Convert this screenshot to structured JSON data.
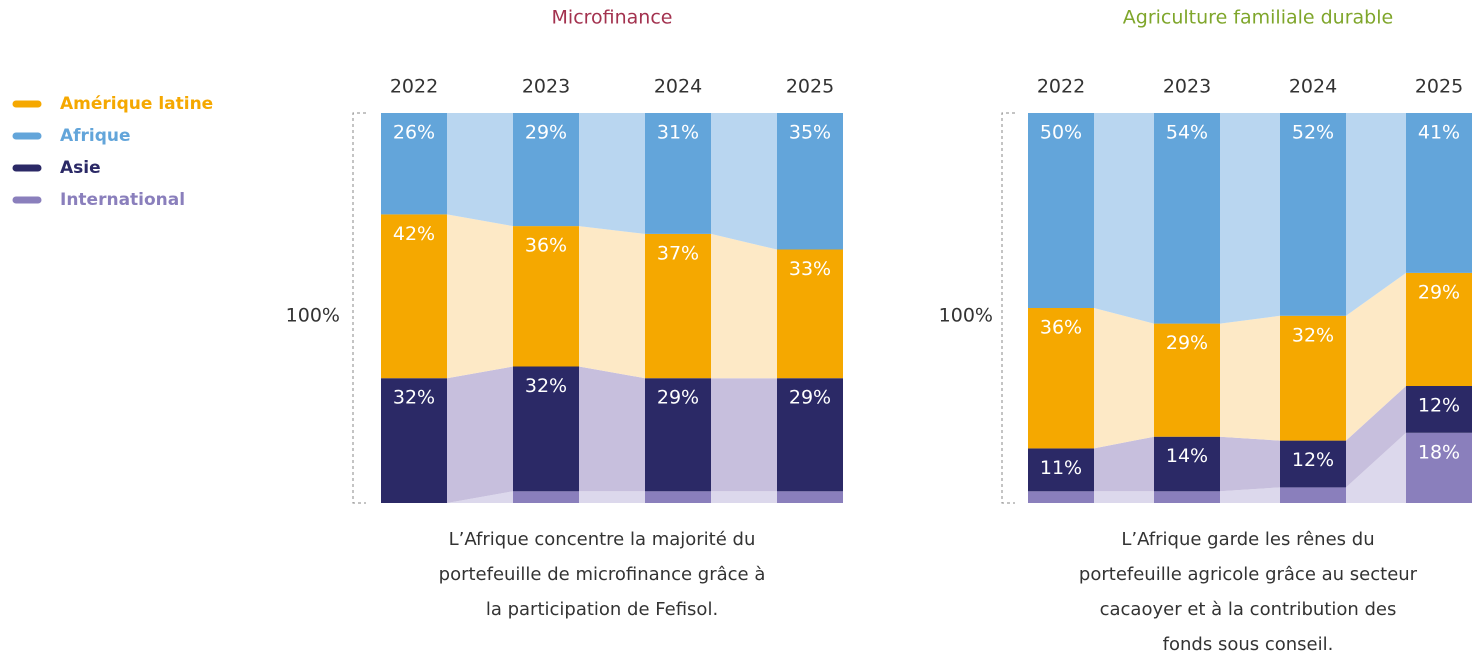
{
  "chart_data": [
    {
      "type": "bar",
      "title": "Microfinance",
      "y_label": "100%",
      "categories": [
        "2022",
        "2023",
        "2024",
        "2025"
      ],
      "series": [
        {
          "name": "Amérique latine",
          "color": "#f5a800",
          "band_color": "#fde9c6",
          "values": [
            42,
            36,
            37,
            33
          ],
          "value_labels": [
            "42%",
            "36%",
            "37%",
            "33%"
          ]
        },
        {
          "name": "Afrique",
          "color": "#63a5da",
          "band_color": "#b9d6f0",
          "values": [
            26,
            29,
            31,
            35
          ],
          "value_labels": [
            "26%",
            "29%",
            "31%",
            "35%"
          ]
        },
        {
          "name": "Asie",
          "color": "#2b2966",
          "band_color": "#c7bfdd",
          "values": [
            32,
            32,
            29,
            29
          ],
          "value_labels": [
            "32%",
            "32%",
            "29%",
            "29%"
          ]
        },
        {
          "name": "International",
          "color": "#8a7fbc",
          "band_color": "#dcd8ec",
          "values": [
            null,
            3,
            3,
            3
          ],
          "value_labels": [
            null,
            "3%",
            "3%",
            "3%"
          ]
        }
      ],
      "caption": [
        "L’Afrique concentre la majorité du",
        "portefeuille de microfinance grâce à",
        "la participation de Fefisol."
      ]
    },
    {
      "type": "bar",
      "title": "Agriculture familiale durable",
      "y_label": "100%",
      "categories": [
        "2022",
        "2023",
        "2024",
        "2025"
      ],
      "series": [
        {
          "name": "Amérique latine",
          "color": "#f5a800",
          "band_color": "#fde9c6",
          "values": [
            36,
            29,
            32,
            29
          ],
          "value_labels": [
            "36%",
            "29%",
            "32%",
            "29%"
          ]
        },
        {
          "name": "Afrique",
          "color": "#63a5da",
          "band_color": "#b9d6f0",
          "values": [
            50,
            54,
            52,
            41
          ],
          "value_labels": [
            "50%",
            "54%",
            "52%",
            "41%"
          ]
        },
        {
          "name": "Asie",
          "color": "#2b2966",
          "band_color": "#c7bfdd",
          "values": [
            11,
            14,
            12,
            12
          ],
          "value_labels": [
            "11%",
            "14%",
            "12%",
            "12%"
          ]
        },
        {
          "name": "International",
          "color": "#8a7fbc",
          "band_color": "#dcd8ec",
          "values": [
            3,
            3,
            4,
            18
          ],
          "value_labels": [
            "3%",
            "3%",
            "4%",
            "18%"
          ]
        }
      ],
      "caption": [
        "L’Afrique garde les rênes du",
        "portefeuille agricole grâce au secteur",
        "cacaoyer et à la contribution des",
        "fonds sous conseil."
      ]
    }
  ]
}
